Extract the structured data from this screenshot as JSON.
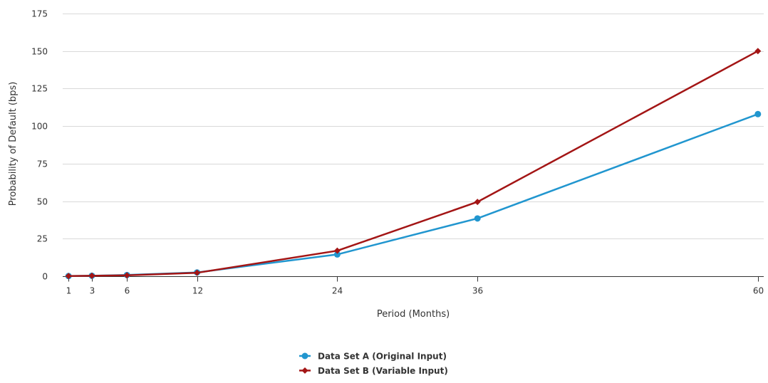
{
  "chart_data": {
    "type": "line",
    "title": "",
    "xlabel": "Period (Months)",
    "ylabel": "Probability of Default (bps)",
    "x": [
      1,
      3,
      6,
      12,
      24,
      36,
      60
    ],
    "x_tick_labels": [
      "1",
      "3",
      "6",
      "12",
      "24",
      "36",
      "60"
    ],
    "xlim": [
      0.5,
      60.5
    ],
    "ylim": [
      0,
      175
    ],
    "y_ticks": [
      0,
      25,
      50,
      75,
      100,
      125,
      150,
      175
    ],
    "grid": "horizontal",
    "legend_position": "bottom-center",
    "series": [
      {
        "name": "Data Set A (Original Input)",
        "color": "#2196cf",
        "marker": "circle",
        "values": [
          0.1,
          0.3,
          0.8,
          2.5,
          14.5,
          38.5,
          108
        ]
      },
      {
        "name": "Data Set B (Variable Input)",
        "color": "#a31515",
        "marker": "diamond",
        "values": [
          0.1,
          0.3,
          0.6,
          2.3,
          17,
          49.5,
          150
        ]
      }
    ]
  }
}
